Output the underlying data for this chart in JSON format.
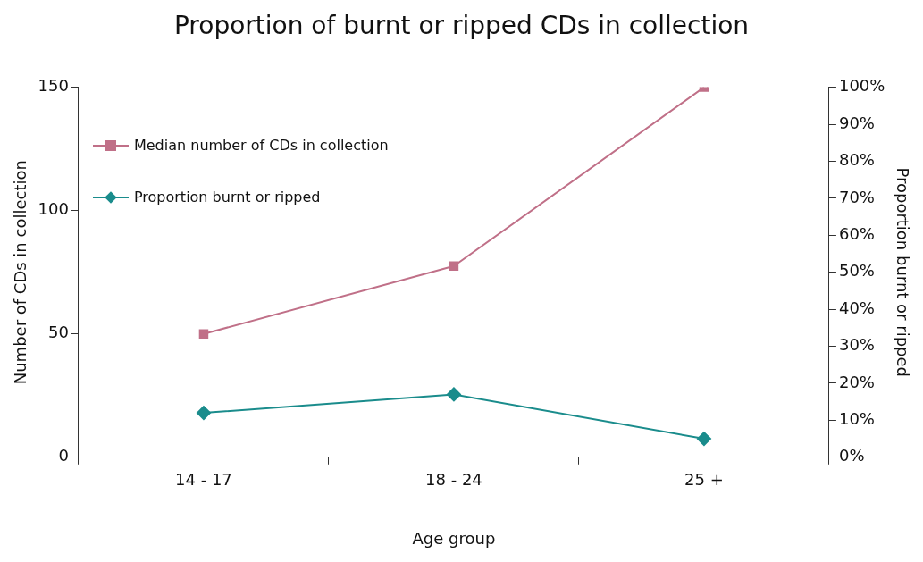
{
  "chart_data": {
    "type": "line",
    "title": "Proportion of burnt or ripped CDs in collection",
    "xlabel": "Age group",
    "ylabel": "Number of CDs in collection",
    "y2label": "Proportion burnt or ripped",
    "categories": [
      "14 - 17",
      "18 - 24",
      "25 +"
    ],
    "series": [
      {
        "name": "Median number of CDs in collection",
        "color": "#c07088",
        "values": [
          50,
          77.5,
          150
        ],
        "marker": "square"
      },
      {
        "name": "Proportion burnt or ripped",
        "color": "#1a8c8c",
        "values": [
          12,
          17,
          5
        ],
        "marker": "diamond",
        "axis": "y2"
      }
    ],
    "ylim": [
      0,
      150
    ],
    "yticks": [
      0,
      50,
      100,
      150
    ],
    "y2lim": [
      0,
      100
    ],
    "y2ticks": [
      {
        "value": 0,
        "label": "0%"
      },
      {
        "value": 10,
        "label": "10%"
      },
      {
        "value": 20,
        "label": "20%"
      },
      {
        "value": 30,
        "label": "30%"
      },
      {
        "value": 40,
        "label": "40%"
      },
      {
        "value": 50,
        "label": "50%"
      },
      {
        "value": 60,
        "label": "60%"
      },
      {
        "value": 70,
        "label": "70%"
      },
      {
        "value": 80,
        "label": "80%"
      },
      {
        "value": 90,
        "label": "90%"
      },
      {
        "value": 100,
        "label": "100%"
      }
    ],
    "grid": false,
    "legend": "top left",
    "line_style": "solid"
  }
}
